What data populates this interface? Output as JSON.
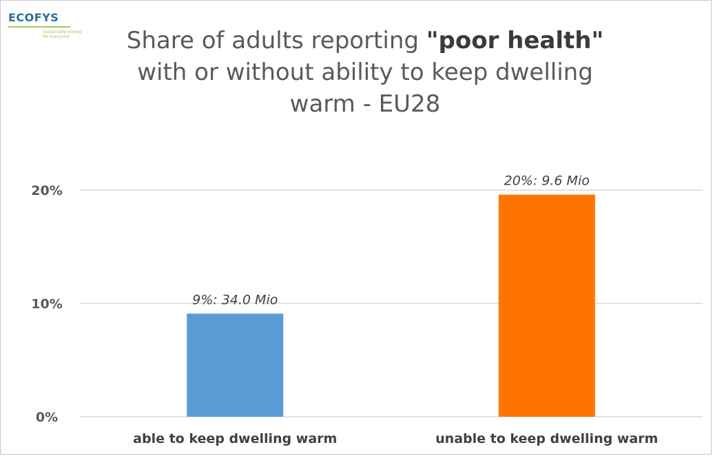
{
  "logo": {
    "text": "ECOFYS",
    "subtext": "sustainable energy for everyone"
  },
  "chart_data": {
    "type": "bar",
    "title": {
      "line1_pre": "Share of adults reporting ",
      "line1_bold": "\"poor health\"",
      "line2": "with or without ability to keep dwelling",
      "line3": "warm - EU28"
    },
    "categories": [
      "able to keep dwelling warm",
      "unable to keep dwelling warm"
    ],
    "values": [
      9.1,
      19.6
    ],
    "data_labels": [
      "9%:  34.0 Mio",
      "20%:  9.6 Mio"
    ],
    "colors": [
      "#5b9bd5",
      "#ff7400"
    ],
    "yticks": [
      0,
      10,
      20
    ],
    "ytick_labels": [
      "0%",
      "10%",
      "20%"
    ],
    "ylim": [
      0,
      20
    ],
    "grid": true,
    "xlabel": "",
    "ylabel": ""
  }
}
